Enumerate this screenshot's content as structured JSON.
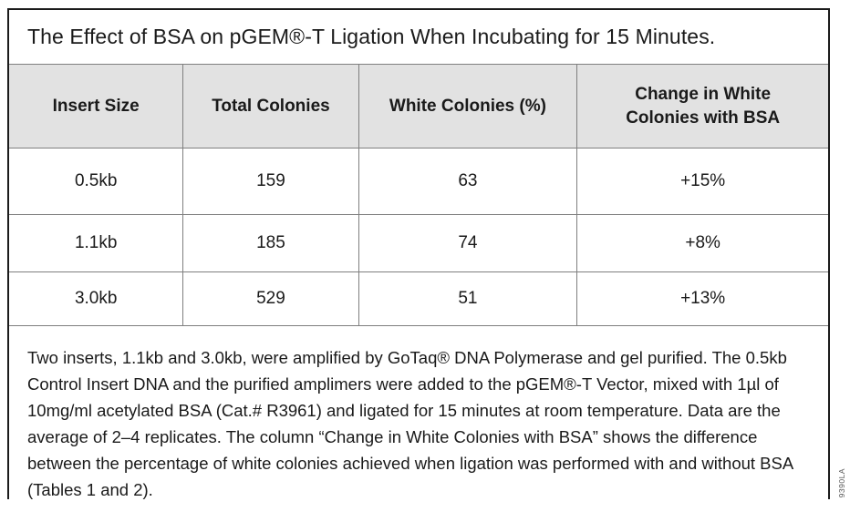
{
  "figure": {
    "title": "The Effect of BSA on pGEM®-T Ligation When Incubating for 15 Minutes.",
    "table": {
      "columns": [
        "Insert Size",
        "Total Colonies",
        "White Colonies (%)",
        "Change in White Colonies with BSA"
      ],
      "rows": [
        [
          "0.5kb",
          "159",
          "63",
          "+15%"
        ],
        [
          "1.1kb",
          "185",
          "74",
          "+8%"
        ],
        [
          "3.0kb",
          "529",
          "51",
          "+13%"
        ]
      ]
    },
    "footnote": "Two inserts, 1.1kb and 3.0kb, were amplified by GoTaq® DNA Polymerase and gel purified. The 0.5kb Control Insert DNA and the purified amplimers were added to the pGEM®-T Vector, mixed with 1µl of 10mg/ml acetylated BSA (Cat.# R3961) and ligated for 15 minutes at room temperature. Data are the average of 2–4 replicates. The column “Change in White Colonies with BSA” shows the difference between the percentage of white colonies achieved when ligation was performed with and without BSA (Tables 1 and 2).",
    "figure_code": "9390LA",
    "colors": {
      "header_bg": "#e2e2e2",
      "grid_line": "#7f7f7f",
      "outer_border": "#1b1b1b",
      "text": "#1a1a1a"
    }
  }
}
